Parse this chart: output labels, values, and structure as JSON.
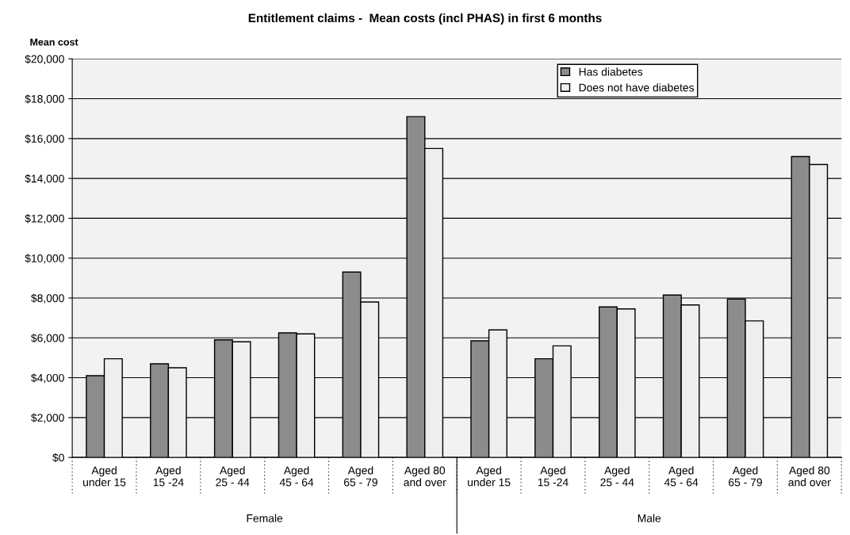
{
  "chart_data": {
    "type": "bar",
    "title": "Entitlement claims -  Mean costs (incl PHAS) in first 6 months",
    "ylabel": "Mean cost",
    "categories": [
      "Aged\nunder 15",
      "Aged\n15 -24",
      "Aged\n25 - 44",
      "Aged\n45 - 64",
      "Aged\n65 - 79",
      "Aged 80\nand over",
      "Aged\nunder 15",
      "Aged\n15 -24",
      "Aged\n25 - 44",
      "Aged\n45 - 64",
      "Aged\n65 - 79",
      "Aged 80\nand over"
    ],
    "series": [
      {
        "name": "Has diabetes",
        "color": "#8c8c8c",
        "values": [
          4100,
          4700,
          5900,
          6250,
          9300,
          17100,
          5850,
          4950,
          7550,
          8150,
          7950,
          15100
        ]
      },
      {
        "name": "Does not have diabetes",
        "color": "#eeeeee",
        "values": [
          4950,
          4500,
          5800,
          6200,
          7800,
          15500,
          6400,
          5600,
          7450,
          7650,
          6850,
          14700
        ]
      }
    ],
    "annotations": [
      "Female",
      "Male"
    ],
    "ylim": [
      0,
      20000
    ],
    "yticks": [
      {
        "value": 0,
        "label": "$0"
      },
      {
        "value": 2000,
        "label": "$2,000"
      },
      {
        "value": 4000,
        "label": "$4,000"
      },
      {
        "value": 6000,
        "label": "$6,000"
      },
      {
        "value": 8000,
        "label": "$8,000"
      },
      {
        "value": 10000,
        "label": "$10,000"
      },
      {
        "value": 12000,
        "label": "$12,000"
      },
      {
        "value": 14000,
        "label": "$14,000"
      },
      {
        "value": 16000,
        "label": "$16,000"
      },
      {
        "value": 18000,
        "label": "$18,000"
      },
      {
        "value": 20000,
        "label": "$20,000"
      }
    ],
    "grid": "y",
    "legend": "top right"
  }
}
